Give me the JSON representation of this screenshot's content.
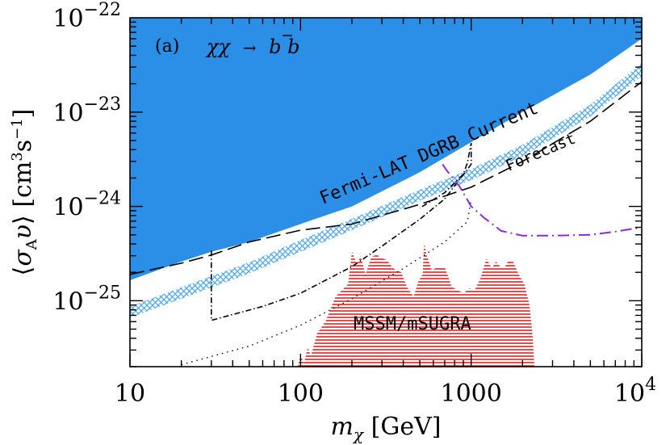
{
  "chart_data": {
    "type": "line",
    "panel_label": "(a)",
    "channel": {
      "prefix": "χχ",
      "arrow": "→",
      "b": "b",
      "bbar": "b"
    },
    "xlabel": {
      "main": "m",
      "sub": "χ",
      "unit": " [GeV]"
    },
    "ylabel": {
      "open": "⟨",
      "sigma": "σ",
      "sub": "A",
      "v": "υ",
      "close": "⟩",
      "unit_a": " [cm",
      "sup3": "3",
      "unit_b": "s",
      "supm1": "−1",
      "unit_c": "]"
    },
    "x_scale": "log",
    "y_scale": "log",
    "xlim": [
      10,
      10000
    ],
    "ylim": [
      2e-26,
      1e-22
    ],
    "x_ticks": [
      {
        "value": 10,
        "label": "10"
      },
      {
        "value": 100,
        "label": "100"
      },
      {
        "value": 1000,
        "label": "1000"
      },
      {
        "value": 10000,
        "base": "10",
        "exp": "4"
      }
    ],
    "y_ticks": [
      {
        "value": 1e-22,
        "base": "10",
        "exp": "−22"
      },
      {
        "value": 1e-23,
        "base": "10",
        "exp": "−23"
      },
      {
        "value": 1e-24,
        "base": "10",
        "exp": "−24"
      },
      {
        "value": 1e-25,
        "base": "10",
        "exp": "−25"
      }
    ],
    "colors": {
      "current_fill": "#2b8fe8",
      "forecast_band": "#4fa8e8",
      "mssm": "#e32020",
      "purple": "#8a2be2",
      "black": "#000000"
    },
    "series": [
      {
        "name": "Fermi-LAT DGRB Current",
        "kind": "excluded region",
        "x": [
          10,
          20,
          30,
          50,
          100,
          200,
          500,
          1000,
          2000,
          5000,
          10000
        ],
        "y": [
          1.65e-25,
          2.6e-25,
          3.3e-25,
          4.2e-25,
          6.5e-25,
          1e-24,
          2.3e-24,
          4.8e-24,
          1e-23,
          2.5e-23,
          6e-23
        ]
      },
      {
        "name": "Forecast",
        "kind": "band",
        "x": [
          10,
          20,
          30,
          50,
          100,
          200,
          500,
          1000,
          2000,
          5000,
          10000
        ],
        "y_low": [
          6.6e-26,
          1.05e-25,
          1.38e-25,
          1.95e-25,
          3.3e-25,
          5.6e-25,
          1.15e-24,
          1.9e-24,
          3.4e-24,
          9e-24,
          2.4e-23
        ],
        "y_high": [
          8.7e-26,
          1.38e-25,
          1.82e-25,
          2.55e-25,
          4.4e-25,
          7.4e-25,
          1.5e-24,
          2.5e-24,
          4.5e-24,
          1.2e-23,
          3.3e-23
        ]
      },
      {
        "kind": "long-dashed line",
        "x": [
          10,
          20,
          30,
          50,
          100,
          200,
          500,
          1000,
          2000,
          5000,
          10000
        ],
        "y": [
          1.9e-25,
          2.5e-25,
          3.05e-25,
          4.2e-25,
          5.6e-25,
          6.5e-25,
          1.05e-24,
          1.6e-24,
          3e-24,
          8e-24,
          2.1e-23
        ]
      },
      {
        "kind": "dash-dot line",
        "x": [
          30,
          30,
          60,
          100,
          200,
          300,
          500,
          700,
          1000,
          1000,
          950,
          900,
          700,
          500
        ],
        "y": [
          3.4e-25,
          6.2e-26,
          8.7e-26,
          1.2e-25,
          2.3e-25,
          3.8e-25,
          7.3e-25,
          1.2e-24,
          2.8e-24,
          4.7e-24,
          2.9e-24,
          2.2e-24,
          1.4e-24,
          9.6e-25
        ]
      },
      {
        "kind": "dotted line",
        "x": [
          20,
          50,
          100,
          200,
          400,
          700,
          950,
          1000
        ],
        "y": [
          2.1e-26,
          3.3e-26,
          5.5e-26,
          1.05e-25,
          2.2e-25,
          4.2e-25,
          6.9e-25,
          1.2e-24
        ]
      },
      {
        "kind": "purple dash-dot line",
        "x": [
          680,
          720,
          780,
          850,
          920,
          1000,
          1200,
          1500,
          2000,
          3000,
          5000,
          7000,
          10000
        ],
        "y": [
          2.8e-24,
          2.4e-24,
          2e-24,
          1.65e-24,
          1.3e-24,
          1e-24,
          7.5e-25,
          5.5e-25,
          4.9e-25,
          4.9e-25,
          5e-25,
          5.4e-25,
          6e-25
        ]
      },
      {
        "name": "MSSM/mSUGRA",
        "kind": "hatched region",
        "x": [
          96,
          100,
          105,
          110,
          115,
          125,
          140,
          160,
          190,
          200,
          215,
          225,
          240,
          260,
          280,
          290,
          320,
          350,
          390,
          420,
          460,
          490,
          520,
          530,
          550,
          590,
          640,
          700,
          770,
          830,
          900,
          980,
          1050,
          1130,
          1230,
          1320,
          1400,
          1480,
          1560,
          1660,
          1760,
          1900,
          2050,
          2200,
          2300,
          2350
        ],
        "y": [
          2e-26,
          2.6e-26,
          2.2e-26,
          3.2e-26,
          2.6e-26,
          4.5e-26,
          6e-26,
          1.1e-25,
          1.5e-25,
          3.3e-25,
          2.4e-25,
          3e-25,
          1.9e-25,
          2.9e-25,
          3.1e-25,
          2.9e-25,
          2.7e-25,
          2.2e-25,
          2e-25,
          1.4e-25,
          1.1e-25,
          1.6e-25,
          1.9e-25,
          4.1e-25,
          3e-25,
          2.1e-25,
          2.3e-25,
          2.3e-25,
          1.4e-25,
          1.3e-25,
          1.2e-25,
          1.35e-25,
          1.3e-25,
          1.7e-25,
          2.8e-25,
          2.2e-25,
          2.6e-25,
          2.3e-25,
          2.2e-25,
          2.7e-25,
          2.6e-25,
          1.9e-25,
          1.5e-25,
          9e-26,
          4e-26,
          2e-26
        ]
      }
    ],
    "labels": {
      "current": "Fermi-LAT DGRB Current",
      "forecast": "Forecast",
      "mssm": "MSSM/mSUGRA"
    }
  }
}
